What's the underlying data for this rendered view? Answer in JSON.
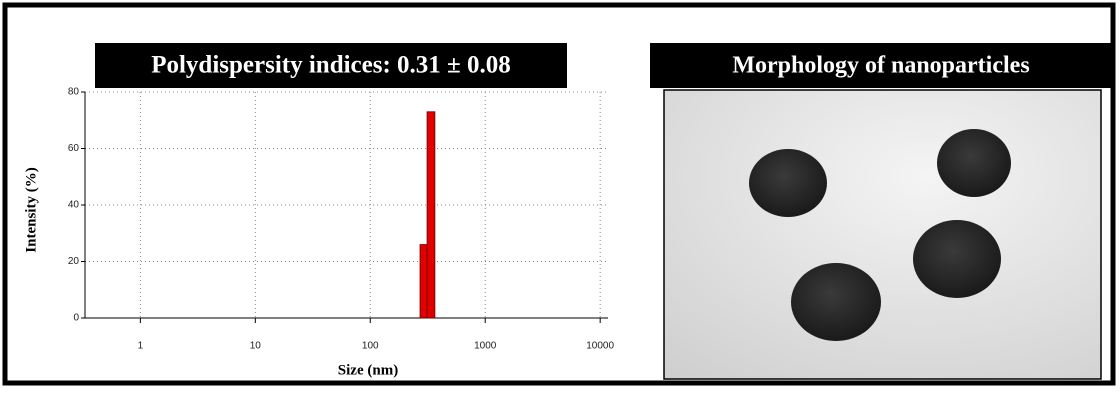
{
  "chart_data": {
    "type": "histogram",
    "title": "Polydispersity indices: 0.31 ± 0.08",
    "x_label": "Size (nm)",
    "y_label": "Intensity (%)",
    "bins": [
      271,
      312,
      365
    ],
    "values": [
      26,
      73
    ],
    "color": "#e00000",
    "xscale": "log",
    "xlim": [
      0.33,
      11700
    ],
    "xticks": [
      1,
      10,
      100,
      1000,
      10000
    ],
    "ylim": [
      0,
      80
    ],
    "yticks": [
      0,
      20,
      40,
      60,
      80
    ],
    "grid": true
  },
  "image_panel": {
    "title": "Morphology of nanoparticles"
  }
}
